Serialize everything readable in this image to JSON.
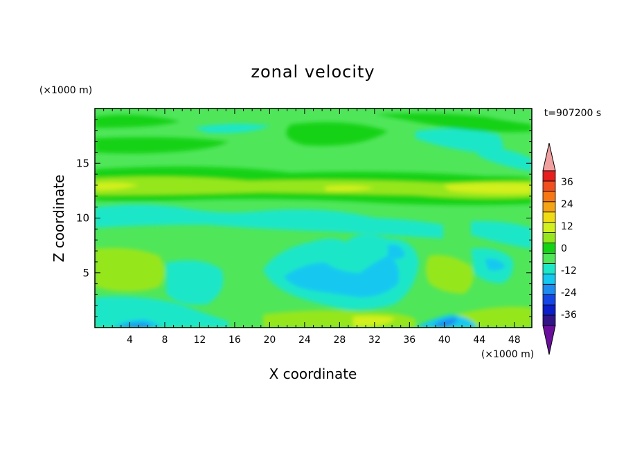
{
  "chart_data": {
    "type": "heatmap",
    "title": "zonal velocity",
    "xlabel": "X coordinate",
    "ylabel": "Z coordinate",
    "x_unit": "(×1000 m)",
    "y_unit": "(×1000 m)",
    "time_label": "t=907200 s",
    "xlim": [
      0,
      50
    ],
    "ylim": [
      0,
      20
    ],
    "x_ticks": [
      4,
      8,
      12,
      16,
      20,
      24,
      28,
      32,
      36,
      40,
      44,
      48
    ],
    "y_ticks": [
      5,
      10,
      15
    ],
    "colorbar": {
      "levels": [
        -42,
        -36,
        -30,
        -24,
        -18,
        -12,
        -6,
        0,
        6,
        12,
        18,
        24,
        30,
        36,
        42
      ],
      "tick_labels": [
        "36",
        "24",
        "12",
        "0",
        "-12",
        "-24",
        "-36"
      ],
      "tick_values": [
        36,
        24,
        12,
        0,
        -12,
        -24,
        -36
      ],
      "colors": [
        "#6a0f9c",
        "#301488",
        "#0b1ec8",
        "#1446e6",
        "#1c8cf0",
        "#14c8f0",
        "#1ee6c8",
        "#50e65a",
        "#14d214",
        "#96e61e",
        "#d2f01e",
        "#f0dc14",
        "#f5a514",
        "#f57814",
        "#f0501e",
        "#e61e1e",
        "#f0a0a0"
      ]
    }
  }
}
